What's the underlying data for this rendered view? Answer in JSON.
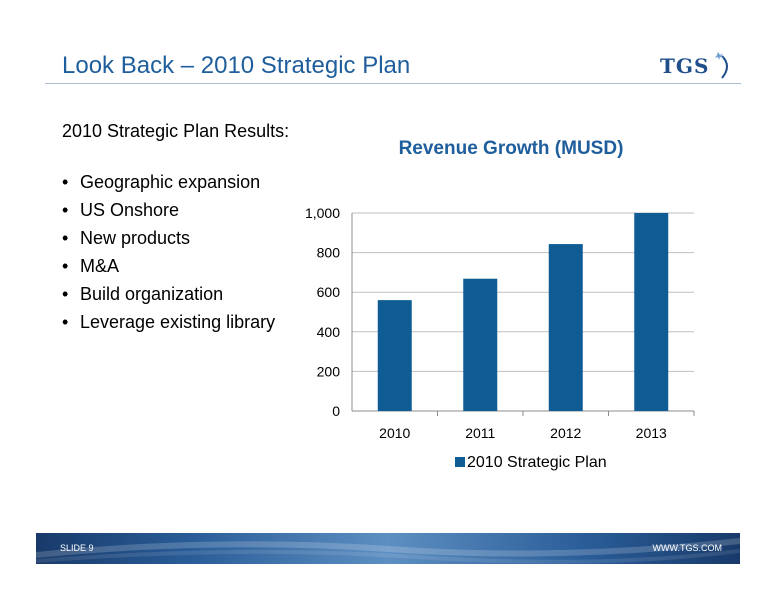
{
  "slide": {
    "title": "Look Back – 2010 Strategic Plan",
    "logo_text": "TGS",
    "results_heading": "2010 Strategic Plan Results:",
    "bullets": [
      "Geographic expansion",
      "US Onshore",
      "New products",
      "M&A",
      "Build organization",
      "Leverage existing library"
    ]
  },
  "footer": {
    "slide_number": "SLIDE 9",
    "website": "WWW.TGS.COM"
  },
  "colors": {
    "title": "#1f5e9c",
    "bar": "#0f5b93",
    "chart_title": "#1f5e9c",
    "footer": "#2a5d98"
  },
  "chart_data": {
    "type": "bar",
    "title": "Revenue Growth (MUSD)",
    "categories": [
      "2010",
      "2011",
      "2012",
      "2013"
    ],
    "series": [
      {
        "name": "2010 Strategic Plan",
        "values": [
          560,
          668,
          843,
          1000
        ]
      }
    ],
    "yticks": [
      "0",
      "200",
      "400",
      "600",
      "800",
      "1,000"
    ],
    "ylim": [
      0,
      1000
    ],
    "grid": true,
    "legend_position": "bottom"
  }
}
